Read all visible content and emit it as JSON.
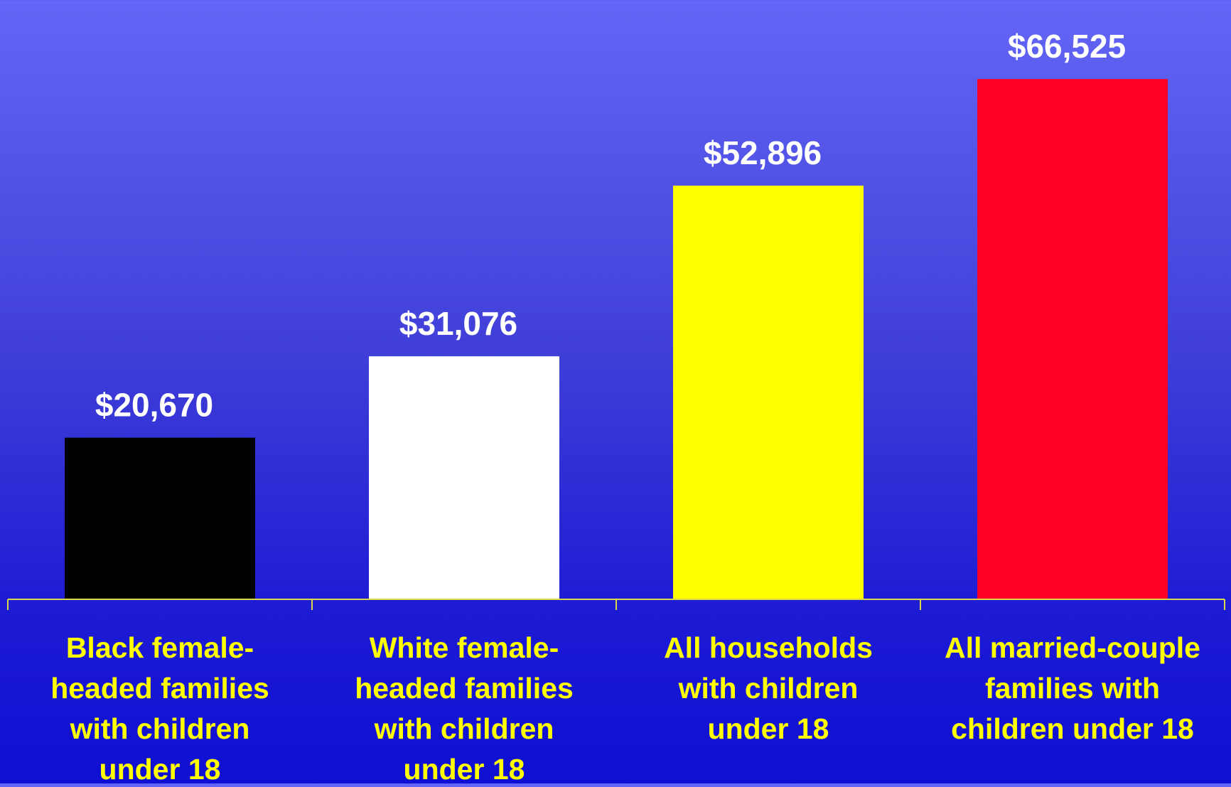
{
  "colors": {
    "axis": "#d9d94a",
    "value_label": "#ffffff",
    "category_label": "#ffff00"
  },
  "chart_data": {
    "type": "bar",
    "categories": [
      [
        "Black female-",
        "headed families",
        "with children",
        "under 18"
      ],
      [
        "White female-",
        "headed families",
        "with children",
        "under 18"
      ],
      [
        "All households",
        "with children",
        "under 18"
      ],
      [
        "All married-couple",
        "families with",
        "children under 18"
      ]
    ],
    "series": [
      {
        "values": [
          20670,
          31076,
          52896,
          66525
        ],
        "value_labels": [
          "$20,670",
          "$31,076",
          "$52,896",
          "$66,525"
        ],
        "colors": [
          "#000000",
          "#ffffff",
          "#ffff00",
          "#ff0026"
        ]
      }
    ],
    "ylim": [
      0,
      70000
    ],
    "grid": false,
    "legend": "none"
  }
}
